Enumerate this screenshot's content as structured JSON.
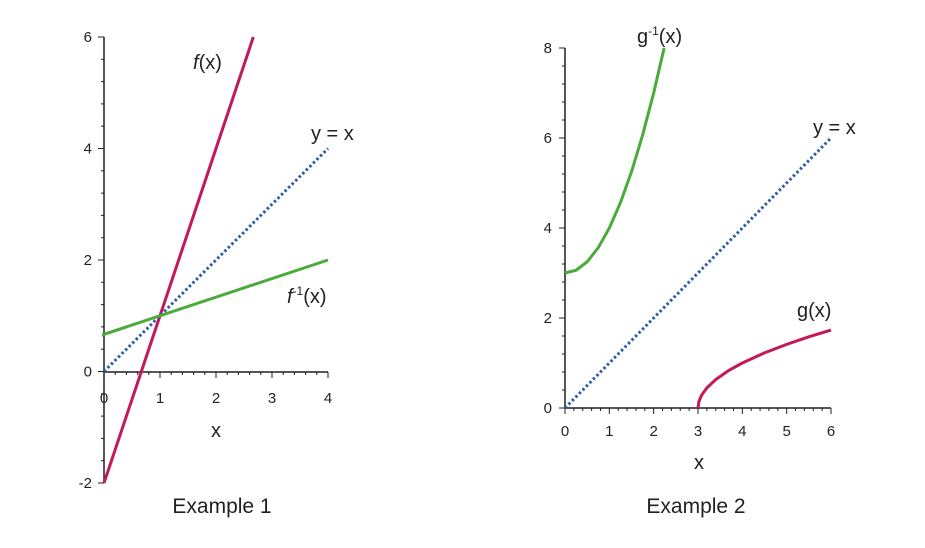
{
  "colors": {
    "f": "#c3185a",
    "inverse": "#4aab3b",
    "identity": "#2e5ca8",
    "axis": "#231f20"
  },
  "chart_data": [
    {
      "type": "line",
      "caption": "Example 1",
      "xlabel": "x",
      "xlim": [
        0,
        4
      ],
      "ylim": [
        -2,
        6
      ],
      "xticks": [
        "0",
        "1",
        "2",
        "3",
        "4"
      ],
      "yticks": [
        "-2",
        "0",
        "2",
        "4",
        "6"
      ],
      "series": [
        {
          "name": "f(x)",
          "label_main": "f",
          "label_sup": "",
          "label_arg": "(x)",
          "color_key": "f",
          "dashed": false,
          "x": [
            0,
            2.667
          ],
          "y": [
            -2,
            6
          ]
        },
        {
          "name": "y = x",
          "label_main": "y",
          "label_sup": "",
          "label_arg": " = x",
          "color_key": "identity",
          "dashed": true,
          "x": [
            0,
            4
          ],
          "y": [
            0,
            4
          ]
        },
        {
          "name": "f⁻¹(x)",
          "label_main": "f",
          "label_sup": "-1",
          "label_arg": "(x)",
          "color_key": "inverse",
          "dashed": false,
          "x": [
            -0.2,
            4
          ],
          "y": [
            0.6,
            2.0
          ]
        }
      ]
    },
    {
      "type": "line",
      "caption": "Example 2",
      "xlabel": "x",
      "xlim": [
        0,
        6
      ],
      "ylim": [
        0,
        8
      ],
      "xticks": [
        "0",
        "1",
        "2",
        "3",
        "4",
        "5",
        "6"
      ],
      "yticks": [
        "0",
        "2",
        "4",
        "6",
        "8"
      ],
      "series": [
        {
          "name": "g⁻¹(x)",
          "label_main": "g",
          "label_sup": "-1",
          "label_arg": "(x)",
          "color_key": "inverse",
          "dashed": false,
          "x": [
            0,
            0.25,
            0.5,
            0.75,
            1.0,
            1.25,
            1.5,
            1.75,
            2.0,
            2.236
          ],
          "y": [
            3.0,
            3.0625,
            3.25,
            3.5625,
            4.0,
            4.5625,
            5.25,
            6.0625,
            7.0,
            8.0
          ]
        },
        {
          "name": "y = x",
          "label_main": "y",
          "label_sup": "",
          "label_arg": " = x",
          "color_key": "identity",
          "dashed": true,
          "x": [
            0,
            6
          ],
          "y": [
            0,
            6
          ]
        },
        {
          "name": "g(x)",
          "label_main": "g",
          "label_sup": "",
          "label_arg": "(x)",
          "color_key": "f",
          "dashed": false,
          "x": [
            3.0,
            3.02,
            3.08,
            3.2,
            3.4,
            3.7,
            4.0,
            4.5,
            5.0,
            5.5,
            6.0
          ],
          "y": [
            0,
            0.141,
            0.283,
            0.447,
            0.632,
            0.837,
            1.0,
            1.225,
            1.414,
            1.581,
            1.732
          ]
        }
      ]
    }
  ]
}
